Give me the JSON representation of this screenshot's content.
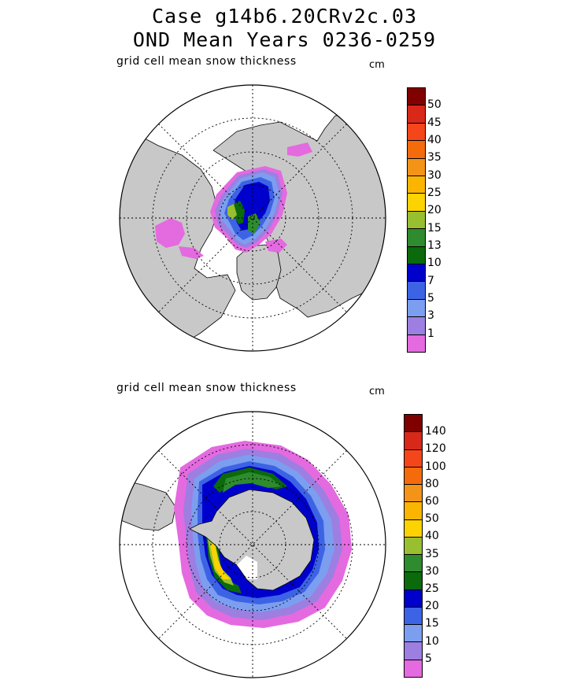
{
  "header": {
    "line1": "Case g14b6.20CRv2c.03",
    "line2": "OND Mean    Years 0236-0259"
  },
  "panels": [
    {
      "label": "grid cell mean snow thickness",
      "units": "cm",
      "hemisphere": "north",
      "colorbar": {
        "colors": [
          "#800000",
          "#d8281a",
          "#f4461a",
          "#f46b0c",
          "#f39418",
          "#fbb400",
          "#fcd200",
          "#98bf30",
          "#2e8b2e",
          "#0b6a0b",
          "#0000cc",
          "#3d63e5",
          "#7c9ef0",
          "#9c7fe0",
          "#e46ae0"
        ],
        "labels": [
          "50",
          "45",
          "40",
          "35",
          "30",
          "25",
          "20",
          "15",
          "13",
          "10",
          "7",
          "5",
          "3",
          "1"
        ]
      }
    },
    {
      "label": "grid cell mean snow thickness",
      "units": "cm",
      "hemisphere": "south",
      "colorbar": {
        "colors": [
          "#800000",
          "#d8281a",
          "#f4461a",
          "#f46b0c",
          "#f39418",
          "#fbb400",
          "#fcd200",
          "#98bf30",
          "#2e8b2e",
          "#0b6a0b",
          "#0000cc",
          "#3d63e5",
          "#7c9ef0",
          "#9c7fe0",
          "#e46ae0"
        ],
        "labels": [
          "140",
          "120",
          "100",
          "80",
          "60",
          "50",
          "40",
          "35",
          "30",
          "25",
          "20",
          "15",
          "10",
          "5"
        ]
      }
    }
  ]
}
